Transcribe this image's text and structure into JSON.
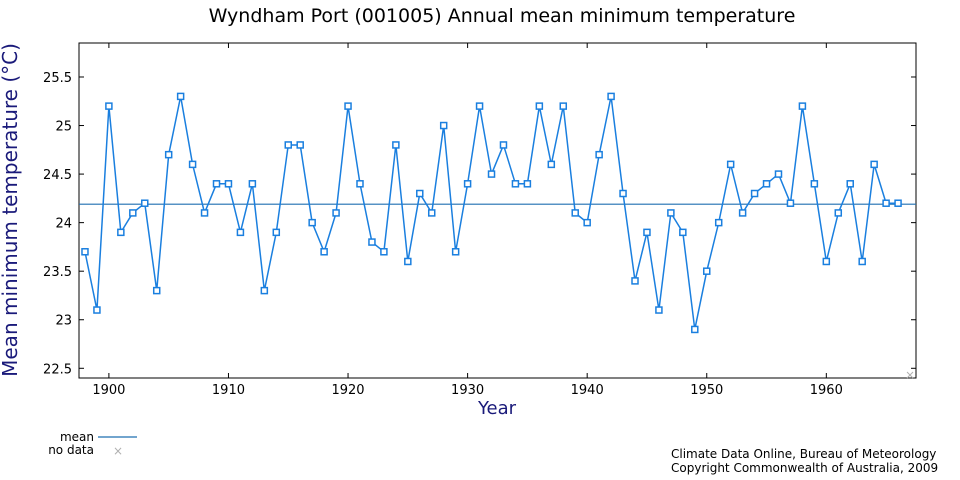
{
  "chart_data": {
    "type": "line",
    "title": "Wyndham Port (001005) Annual mean minimum temperature",
    "xlabel": "Year",
    "ylabel": "Mean minimum temperature (°C)",
    "xlim": [
      1897.5,
      1967.5
    ],
    "ylim": [
      22.4,
      25.85
    ],
    "x_ticks": [
      1900,
      1910,
      1920,
      1930,
      1940,
      1950,
      1960
    ],
    "y_ticks": [
      22.5,
      23,
      23.5,
      24,
      24.5,
      25,
      25.5
    ],
    "x_tick_labels": [
      "1900",
      "1910",
      "1920",
      "1930",
      "1940",
      "1950",
      "1960"
    ],
    "y_tick_labels": [
      "22.5",
      "23",
      "23.5",
      "24",
      "24.5",
      "25",
      "25.5"
    ],
    "mean": 24.19,
    "series": [
      {
        "x": [
          1898,
          1899,
          1900,
          1901,
          1902,
          1903,
          1904,
          1905,
          1906,
          1907,
          1908,
          1909,
          1910,
          1911,
          1912,
          1913,
          1914,
          1915,
          1916,
          1917,
          1918,
          1919,
          1920,
          1921,
          1922,
          1923,
          1924,
          1925,
          1926,
          1927,
          1928,
          1929,
          1930,
          1931,
          1932,
          1933,
          1934,
          1935,
          1936,
          1937,
          1938,
          1939,
          1940,
          1941,
          1942,
          1943,
          1944,
          1945,
          1946,
          1947,
          1948,
          1949,
          1950,
          1951,
          1952,
          1953,
          1954,
          1955,
          1956,
          1957,
          1958,
          1959,
          1960,
          1961,
          1962,
          1963,
          1964,
          1965,
          1966
        ],
        "values": [
          23.7,
          23.1,
          25.2,
          23.9,
          24.1,
          24.2,
          23.3,
          24.7,
          25.3,
          24.6,
          24.1,
          24.4,
          24.4,
          23.9,
          24.4,
          23.3,
          23.9,
          24.8,
          24.8,
          24.0,
          23.7,
          24.1,
          25.2,
          24.4,
          23.8,
          23.7,
          24.8,
          23.6,
          24.3,
          24.1,
          25.0,
          23.7,
          24.4,
          25.2,
          24.5,
          24.8,
          24.4,
          24.4,
          25.2,
          24.6,
          25.2,
          24.1,
          24.0,
          24.7,
          25.3,
          24.3,
          23.4,
          23.9,
          23.1,
          24.1,
          23.9,
          22.9,
          23.5,
          24.0,
          24.6,
          24.1,
          24.3,
          24.4,
          24.5,
          24.2,
          25.2,
          24.4,
          23.6,
          24.1,
          24.4,
          23.6,
          24.6,
          24.2,
          24.2
        ]
      }
    ],
    "no_data_x": [
      1967
    ],
    "legend": {
      "placement": "bottom-left",
      "mean_label": "mean",
      "no_data_label": "no data",
      "no_data_marker": "×"
    },
    "grid": false
  },
  "credit": {
    "line1": "Climate Data Online, Bureau of Meteorology",
    "line2": "Copyright Commonwealth of Australia, 2009"
  },
  "colors": {
    "series": "#1a7fdf",
    "marker": "#1a7fdf",
    "mean": "#1f6fb0",
    "no_data": "#b0b0b0",
    "axis_label": "#1a1a7a"
  }
}
